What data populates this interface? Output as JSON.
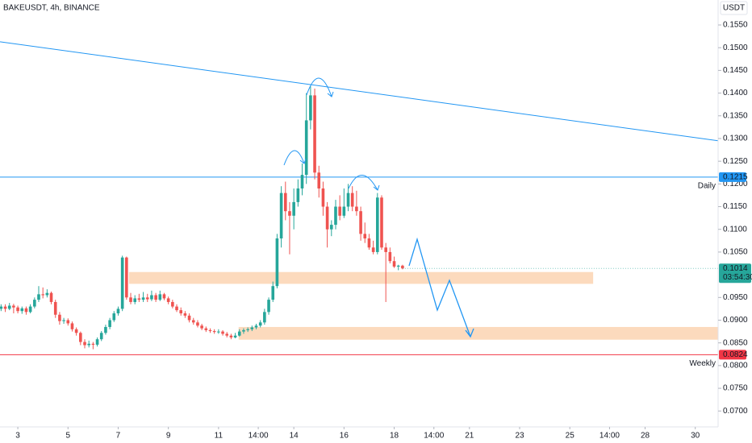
{
  "chart_data": {
    "type": "candlestick",
    "title": "BAKEUSDT, 4h, BINANCE",
    "currency": "USDT",
    "up_color": "#26a69a",
    "down_color": "#ef5350",
    "xlim": [
      2.29,
      30.91
    ],
    "ylim": [
      0.0665,
      0.1605
    ],
    "xticks": [
      3,
      5,
      7,
      9,
      11,
      {
        "value": 12.583,
        "label": "14:00"
      },
      14,
      16,
      18,
      {
        "value": 19.583,
        "label": "14:00"
      },
      21,
      23,
      25,
      {
        "value": 26.583,
        "label": "14:00"
      },
      28,
      30
    ],
    "yticks": [
      {
        "value": 0.155,
        "label": "0.1550"
      },
      {
        "value": 0.15,
        "label": "0.1500"
      },
      {
        "value": 0.145,
        "label": "0.1450"
      },
      {
        "value": 0.14,
        "label": "0.1400"
      },
      {
        "value": 0.135,
        "label": "0.1350"
      },
      {
        "value": 0.13,
        "label": "0.1300"
      },
      {
        "value": 0.125,
        "label": "0.1250"
      },
      {
        "value": 0.12,
        "label": "0.1200"
      },
      {
        "value": 0.115,
        "label": "0.1150"
      },
      {
        "value": 0.11,
        "label": "0.1100"
      },
      {
        "value": 0.105,
        "label": "0.1050"
      },
      {
        "value": 0.095,
        "label": "0.0950"
      },
      {
        "value": 0.09,
        "label": "0.0900"
      },
      {
        "value": 0.085,
        "label": "0.0850"
      },
      {
        "value": 0.08,
        "label": "0.0800"
      },
      {
        "value": 0.075,
        "label": "0.0750"
      },
      {
        "value": 0.07,
        "label": "0.0700"
      }
    ],
    "x": [
      2.333,
      2.5,
      2.667,
      2.833,
      3,
      3.167,
      3.333,
      3.5,
      3.667,
      3.833,
      4,
      4.167,
      4.333,
      4.5,
      4.667,
      4.833,
      5,
      5.167,
      5.333,
      5.5,
      5.667,
      5.833,
      6,
      6.167,
      6.333,
      6.5,
      6.667,
      6.833,
      7,
      7.167,
      7.333,
      7.5,
      7.667,
      7.833,
      8,
      8.167,
      8.333,
      8.5,
      8.667,
      8.833,
      9,
      9.167,
      9.333,
      9.5,
      9.667,
      9.833,
      10,
      10.167,
      10.333,
      10.5,
      10.667,
      10.833,
      11,
      11.167,
      11.333,
      11.5,
      11.667,
      11.833,
      12,
      12.167,
      12.333,
      12.5,
      12.667,
      12.833,
      13,
      13.167,
      13.333,
      13.5,
      13.667,
      13.833,
      14,
      14.167,
      14.333,
      14.5,
      14.667,
      14.833,
      15,
      15.167,
      15.333,
      15.5,
      15.667,
      15.833,
      16,
      16.167,
      16.333,
      16.5,
      16.667,
      16.833,
      17,
      17.167,
      17.333,
      17.5,
      17.667,
      17.833,
      18,
      18.167,
      18.333
    ],
    "ohlc": [
      [
        0.0925,
        0.0935,
        0.092,
        0.093
      ],
      [
        0.093,
        0.0935,
        0.0918,
        0.0925
      ],
      [
        0.0925,
        0.0938,
        0.0922,
        0.0932
      ],
      [
        0.0932,
        0.0936,
        0.0915,
        0.0928
      ],
      [
        0.0928,
        0.0932,
        0.0915,
        0.092
      ],
      [
        0.092,
        0.093,
        0.0914,
        0.0926
      ],
      [
        0.0926,
        0.093,
        0.0912,
        0.0918
      ],
      [
        0.0918,
        0.0935,
        0.0915,
        0.093
      ],
      [
        0.093,
        0.095,
        0.0926,
        0.0945
      ],
      [
        0.0945,
        0.0975,
        0.094,
        0.0957
      ],
      [
        0.0957,
        0.0972,
        0.0948,
        0.0955
      ],
      [
        0.0955,
        0.0968,
        0.095,
        0.096
      ],
      [
        0.096,
        0.0963,
        0.0935,
        0.094
      ],
      [
        0.094,
        0.0945,
        0.0905,
        0.0912
      ],
      [
        0.0912,
        0.0918,
        0.089,
        0.0898
      ],
      [
        0.0898,
        0.0905,
        0.0892,
        0.09
      ],
      [
        0.09,
        0.0904,
        0.0888,
        0.0893
      ],
      [
        0.0893,
        0.0897,
        0.0875,
        0.088
      ],
      [
        0.088,
        0.0884,
        0.0866,
        0.0872
      ],
      [
        0.0872,
        0.0875,
        0.0845,
        0.0852
      ],
      [
        0.0852,
        0.0858,
        0.0838,
        0.0845
      ],
      [
        0.0845,
        0.0855,
        0.084,
        0.0848
      ],
      [
        0.0848,
        0.0852,
        0.0836,
        0.0846
      ],
      [
        0.0846,
        0.0862,
        0.0842,
        0.0858
      ],
      [
        0.0858,
        0.0876,
        0.0854,
        0.0872
      ],
      [
        0.0872,
        0.089,
        0.0868,
        0.0885
      ],
      [
        0.0885,
        0.0905,
        0.088,
        0.09
      ],
      [
        0.09,
        0.092,
        0.0896,
        0.0915
      ],
      [
        0.0915,
        0.093,
        0.091,
        0.0925
      ],
      [
        0.0925,
        0.1042,
        0.092,
        0.1038
      ],
      [
        0.1038,
        0.104,
        0.0945,
        0.095
      ],
      [
        0.095,
        0.096,
        0.0935,
        0.094
      ],
      [
        0.094,
        0.0955,
        0.0935,
        0.0948
      ],
      [
        0.0948,
        0.0958,
        0.094,
        0.0945
      ],
      [
        0.0945,
        0.0962,
        0.094,
        0.095
      ],
      [
        0.095,
        0.0958,
        0.094,
        0.0946
      ],
      [
        0.0946,
        0.0965,
        0.0942,
        0.0955
      ],
      [
        0.0955,
        0.096,
        0.094,
        0.0945
      ],
      [
        0.0945,
        0.0965,
        0.0942,
        0.0957
      ],
      [
        0.0957,
        0.096,
        0.0944,
        0.0948
      ],
      [
        0.0948,
        0.0952,
        0.0935,
        0.094
      ],
      [
        0.094,
        0.0945,
        0.0926,
        0.093
      ],
      [
        0.093,
        0.0935,
        0.0918,
        0.0922
      ],
      [
        0.0922,
        0.0928,
        0.091,
        0.0915
      ],
      [
        0.0915,
        0.092,
        0.0905,
        0.091
      ],
      [
        0.091,
        0.0915,
        0.0895,
        0.09
      ],
      [
        0.09,
        0.0905,
        0.089,
        0.0895
      ],
      [
        0.0895,
        0.09,
        0.0884,
        0.0888
      ],
      [
        0.0888,
        0.0892,
        0.0878,
        0.0882
      ],
      [
        0.0882,
        0.0886,
        0.0874,
        0.0878
      ],
      [
        0.0878,
        0.0882,
        0.0872,
        0.0876
      ],
      [
        0.0876,
        0.088,
        0.087,
        0.0874
      ],
      [
        0.0874,
        0.088,
        0.087,
        0.0875
      ],
      [
        0.0875,
        0.0878,
        0.0866,
        0.087
      ],
      [
        0.087,
        0.0874,
        0.0862,
        0.0866
      ],
      [
        0.0866,
        0.087,
        0.0858,
        0.0862
      ],
      [
        0.0862,
        0.0872,
        0.086,
        0.0866
      ],
      [
        0.0866,
        0.088,
        0.0864,
        0.0875
      ],
      [
        0.0875,
        0.0882,
        0.087,
        0.0878
      ],
      [
        0.0878,
        0.0884,
        0.0874,
        0.088
      ],
      [
        0.088,
        0.0888,
        0.0876,
        0.0884
      ],
      [
        0.0884,
        0.0892,
        0.088,
        0.0888
      ],
      [
        0.0888,
        0.09,
        0.0884,
        0.0895
      ],
      [
        0.0895,
        0.0925,
        0.089,
        0.0918
      ],
      [
        0.0918,
        0.095,
        0.0912,
        0.0945
      ],
      [
        0.0945,
        0.0985,
        0.094,
        0.0975
      ],
      [
        0.0975,
        0.109,
        0.097,
        0.108
      ],
      [
        0.108,
        0.1195,
        0.106,
        0.118
      ],
      [
        0.118,
        0.1205,
        0.112,
        0.114
      ],
      [
        0.114,
        0.116,
        0.1045,
        0.113
      ],
      [
        0.113,
        0.119,
        0.11,
        0.116
      ],
      [
        0.116,
        0.121,
        0.115,
        0.119
      ],
      [
        0.119,
        0.1245,
        0.1175,
        0.122
      ],
      [
        0.122,
        0.14,
        0.12,
        0.134
      ],
      [
        0.134,
        0.1415,
        0.132,
        0.1395
      ],
      [
        0.1395,
        0.141,
        0.121,
        0.1225
      ],
      [
        0.1225,
        0.124,
        0.117,
        0.119
      ],
      [
        0.119,
        0.1205,
        0.113,
        0.115
      ],
      [
        0.115,
        0.116,
        0.106,
        0.11
      ],
      [
        0.11,
        0.112,
        0.1085,
        0.111
      ],
      [
        0.111,
        0.1165,
        0.11,
        0.115
      ],
      [
        0.115,
        0.1175,
        0.112,
        0.113
      ],
      [
        0.113,
        0.119,
        0.1125,
        0.115
      ],
      [
        0.115,
        0.12,
        0.114,
        0.118
      ],
      [
        0.118,
        0.1195,
        0.114,
        0.115
      ],
      [
        0.115,
        0.1185,
        0.113,
        0.114
      ],
      [
        0.114,
        0.115,
        0.1075,
        0.109
      ],
      [
        0.109,
        0.1115,
        0.107,
        0.108
      ],
      [
        0.108,
        0.109,
        0.1055,
        0.106
      ],
      [
        0.106,
        0.1075,
        0.1045,
        0.105
      ],
      [
        0.105,
        0.118,
        0.1045,
        0.117
      ],
      [
        0.117,
        0.1175,
        0.1055,
        0.106
      ],
      [
        0.106,
        0.107,
        0.094,
        0.105
      ],
      [
        0.105,
        0.106,
        0.1025,
        0.103
      ],
      [
        0.103,
        0.104,
        0.1015,
        0.1018
      ],
      [
        0.1018,
        0.1022,
        0.101,
        0.102
      ],
      [
        0.102,
        0.1022,
        0.1012,
        0.1014
      ]
    ],
    "trendline": {
      "color": "#2196f3",
      "x": [
        2.29,
        30.91
      ],
      "y": [
        0.1513,
        0.1295
      ]
    },
    "zones": [
      {
        "color": "#fbd3b1",
        "x": [
          7.43,
          25.93
        ],
        "y": [
          0.098,
          0.1006
        ]
      },
      {
        "color": "#fbd3b1",
        "x": [
          11.8,
          30.91
        ],
        "y": [
          0.0857,
          0.0885
        ]
      }
    ],
    "levels": [
      {
        "value": 0.1215,
        "note": "Daily",
        "color": "#2196f3"
      },
      {
        "value": 0.0824,
        "note": "Weekly",
        "color": "#f23645"
      }
    ],
    "last_price": {
      "value": 0.1014,
      "countdown": "03:54:30",
      "color": "#26a69a"
    }
  }
}
